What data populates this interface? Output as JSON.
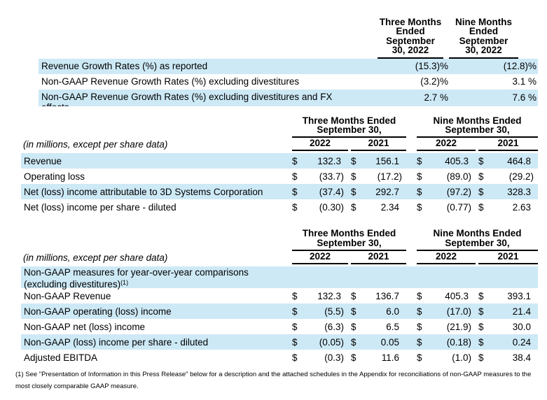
{
  "currency": "$",
  "colors": {
    "highlight": "#cde9f6",
    "text": "#000000"
  },
  "table1": {
    "col_headers": [
      {
        "lines": [
          "Three Months",
          "Ended",
          "September",
          "30, 2022"
        ]
      },
      {
        "lines": [
          "Nine Months",
          "Ended",
          "September",
          "30, 2022"
        ]
      }
    ],
    "rows": [
      {
        "label": "Revenue Growth Rates (%) as reported",
        "values": [
          "(15.3)%",
          "(12.8)%"
        ]
      },
      {
        "label": "Non-GAAP Revenue Growth Rates (%) excluding divestitures",
        "values": [
          "(3.2)%",
          "3.1 %"
        ]
      },
      {
        "label_lines": [
          "Non-GAAP Revenue Growth Rates (%) excluding divestitures and FX",
          "effects"
        ],
        "values": [
          "2.7 %",
          "7.6 %"
        ]
      }
    ]
  },
  "table2": {
    "group_headers": [
      {
        "lines": [
          "Three Months Ended",
          "September 30,"
        ]
      },
      {
        "lines": [
          "Nine Months Ended",
          "September 30,"
        ]
      }
    ],
    "year_headers": [
      "2022",
      "2021",
      "2022",
      "2021"
    ],
    "units_note": "(in millions, except per share data)",
    "rows": [
      {
        "label": "Revenue",
        "values": [
          "132.3",
          "156.1",
          "405.3",
          "464.8"
        ]
      },
      {
        "label": "Operating loss",
        "values": [
          "(33.7)",
          "(17.2)",
          "(89.0)",
          "(29.2)"
        ]
      },
      {
        "label": "Net (loss) income attributable to 3D Systems Corporation",
        "values": [
          "(37.4)",
          "292.7",
          "(97.2)",
          "328.3"
        ]
      },
      {
        "label": "Net (loss) income per share - diluted",
        "values": [
          "(0.30)",
          "2.34",
          "(0.77)",
          "2.63"
        ]
      }
    ]
  },
  "table3": {
    "group_headers": [
      {
        "lines": [
          "Three Months Ended",
          "September 30,"
        ]
      },
      {
        "lines": [
          "Nine Months Ended",
          "September 30,"
        ]
      }
    ],
    "year_headers": [
      "2022",
      "2021",
      "2022",
      "2021"
    ],
    "units_note": "(in millions, except per share data)",
    "section_row": {
      "line1": "Non-GAAP measures for year-over-year comparisons",
      "line2": "(excluding divestitures)",
      "footnote_ref": "(1)"
    },
    "rows": [
      {
        "label": "Non-GAAP Revenue",
        "values": [
          "132.3",
          "136.7",
          "405.3",
          "393.1"
        ]
      },
      {
        "label": "Non-GAAP operating (loss) income",
        "values": [
          "(5.5)",
          "6.0",
          "(17.0)",
          "21.4"
        ]
      },
      {
        "label": "Non-GAAP net (loss) income",
        "values": [
          "(6.3)",
          "6.5",
          "(21.9)",
          "30.0"
        ]
      },
      {
        "label": "Non-GAAP (loss) income per share - diluted",
        "values": [
          "(0.05)",
          "0.05",
          "(0.18)",
          "0.24"
        ]
      },
      {
        "label": "Adjusted EBITDA",
        "values": [
          "(0.3)",
          "11.6",
          "(1.0)",
          "38.4"
        ]
      }
    ]
  },
  "footnote": {
    "text": "(1) See \"Presentation of Information in this Press Release\" below for a description and the attached schedules in the Appendix for reconciliations of non-GAAP measures to the most closely comparable GAAP measure."
  }
}
